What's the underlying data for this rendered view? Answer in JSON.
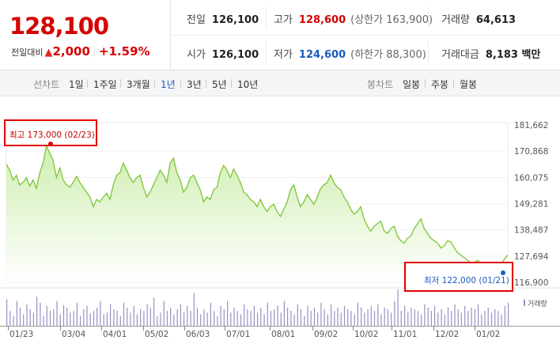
{
  "quote": {
    "price": "128,100",
    "change_label": "전일대비",
    "change_symbol": "▲",
    "change_amount": "2,000",
    "change_percent": "+1.59%",
    "up_color": "#d60000",
    "down_color": "#1a5bc4",
    "stats": {
      "prev_close_label": "전일",
      "prev_close": "126,100",
      "high_label": "고가",
      "high": "128,600",
      "upper_limit": "(상한가 163,900)",
      "volume_label": "거래량",
      "volume": "64,613",
      "open_label": "시가",
      "open": "126,100",
      "low_label": "저가",
      "low": "124,600",
      "lower_limit": "(하한가 88,300)",
      "trade_value_label": "거래대금",
      "trade_value": "8,183 백만"
    }
  },
  "toolbar": {
    "line_chart_label": "선차트",
    "periods": [
      "1일",
      "1주일",
      "3개월",
      "1년",
      "3년",
      "5년",
      "10년"
    ],
    "selected_period": "1년",
    "candle_chart_label": "봉차트",
    "candle_periods": [
      "일봉",
      "주봉",
      "월봉"
    ]
  },
  "chart_data": {
    "type": "area",
    "y_ticks": [
      "181,662",
      "170,868",
      "160,075",
      "149,281",
      "138,487",
      "127,694",
      "116,900"
    ],
    "ylim": [
      116900,
      181662
    ],
    "x_ticks": [
      "01/23",
      "03/04",
      "04/01",
      "05/02",
      "06/03",
      "07/01",
      "08/01",
      "09/02",
      "10/02",
      "11/01",
      "12/02",
      "01/02"
    ],
    "high_marker": {
      "label": "최고 173,000 (02/23)",
      "value": 173000
    },
    "low_marker": {
      "label": "최저 122,000 (01/21)",
      "value": 122000
    },
    "volume_legend": "거래량",
    "line_color": "#7bc636",
    "fill_color": "#cfeeb0",
    "series": [
      {
        "values": [
          165500,
          163000,
          159000,
          161000,
          157000,
          158000,
          160000,
          156500,
          159000,
          155500,
          162000,
          166000,
          173000,
          170000,
          167000,
          160000,
          164000,
          159000,
          157000,
          156000,
          158000,
          160500,
          158000,
          156000,
          154000,
          152000,
          148000,
          151000,
          150000,
          152000,
          153500,
          151000,
          157000,
          161000,
          162000,
          166000,
          163000,
          160000,
          158000,
          160000,
          161000,
          156000,
          152000,
          154000,
          157000,
          160000,
          163000,
          161000,
          158000,
          166000,
          168000,
          162000,
          159000,
          154000,
          156000,
          160000,
          161000,
          158000,
          155000,
          150000,
          152000,
          151000,
          155000,
          156000,
          162000,
          165000,
          163000,
          160000,
          163500,
          161000,
          158000,
          154000,
          153000,
          151000,
          150000,
          148000,
          151000,
          148000,
          146000,
          148000,
          149000,
          146000,
          144000,
          147000,
          150000,
          155000,
          157000,
          152000,
          148000,
          150000,
          153000,
          151000,
          149000,
          152000,
          155500,
          157000,
          158000,
          161000,
          158000,
          156000,
          155000,
          152000,
          150000,
          147000,
          145000,
          146000,
          148000,
          143000,
          140000,
          138000,
          140000,
          141000,
          142000,
          138000,
          137000,
          139000,
          140000,
          136000,
          134000,
          133000,
          135000,
          136000,
          139000,
          141000,
          143000,
          139000,
          137000,
          135000,
          134000,
          133000,
          131000,
          132000,
          134000,
          133500,
          131000,
          129000,
          128000,
          127000,
          126000,
          124500,
          125000,
          126000,
          124500,
          123000,
          124000,
          122500,
          123000,
          122000,
          124000,
          126500,
          128100
        ]
      }
    ],
    "volume_values": [
      32,
      18,
      12,
      30,
      22,
      14,
      26,
      20,
      16,
      35,
      28,
      12,
      24,
      18,
      20,
      30,
      14,
      25,
      22,
      16,
      18,
      28,
      12,
      20,
      24,
      15,
      18,
      22,
      30,
      14,
      16,
      26,
      20,
      18,
      12,
      28,
      22,
      16,
      24,
      14,
      20,
      18,
      26,
      22,
      34,
      12,
      16,
      30,
      18,
      22,
      14,
      20,
      26,
      16,
      24,
      18,
      40,
      22,
      14,
      20,
      16,
      28,
      18,
      12,
      24,
      20,
      30,
      16,
      22,
      18,
      14,
      26,
      20,
      18,
      24,
      16,
      22,
      14,
      28,
      18,
      20,
      24,
      16,
      30,
      22,
      18,
      14,
      26,
      20,
      12,
      24,
      18,
      22,
      16,
      28,
      20,
      14,
      26,
      18,
      22,
      16,
      24,
      20,
      18,
      14,
      28,
      22,
      16,
      20,
      24,
      18,
      26,
      14,
      22,
      20,
      16,
      30,
      44,
      18,
      24,
      16,
      22,
      20,
      18,
      14,
      26,
      22,
      18,
      24,
      16,
      20,
      14,
      22,
      18,
      26,
      20,
      16,
      24,
      18,
      22,
      20,
      26,
      14,
      18,
      22,
      16,
      20,
      18,
      14,
      24,
      28
    ]
  }
}
